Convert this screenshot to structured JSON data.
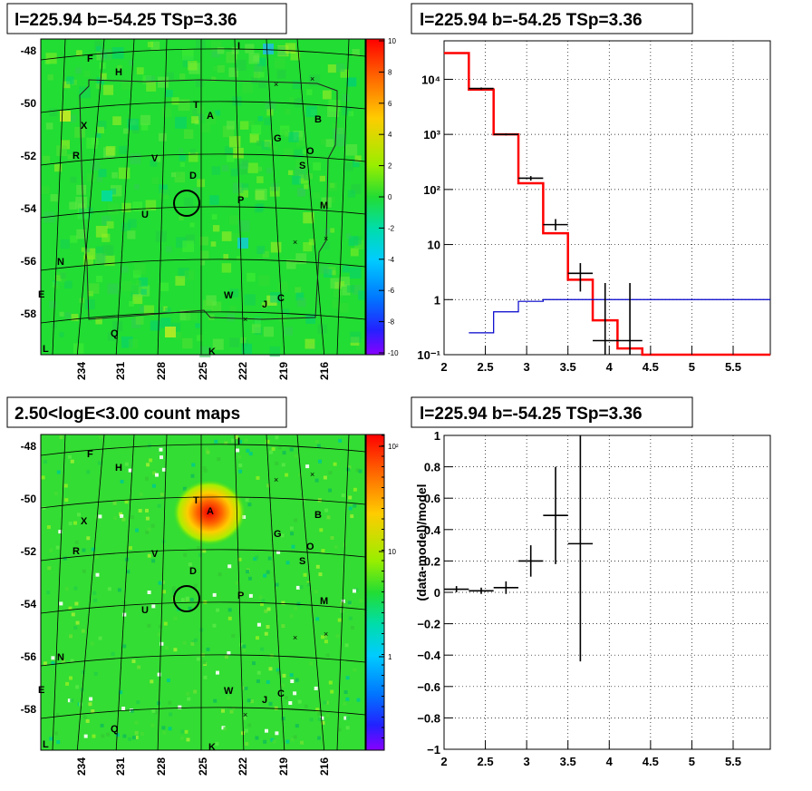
{
  "colors": {
    "sky_green": "#22dd33",
    "data_black": "#000000",
    "model_red": "#ff0000",
    "bkg_blue": "#0000cc"
  },
  "maps": [
    {
      "title": "l=225.94 b=-54.25 TSp=3.36",
      "colorbar_type": "linear",
      "colorbar_ticks": [
        "10",
        "8",
        "6",
        "4",
        "2",
        "0",
        "-2",
        "-4",
        "-6",
        "-8",
        "-10"
      ],
      "lat_labels": [
        "-48",
        "-50",
        "-52",
        "-54",
        "-56",
        "-58"
      ],
      "lon_labels": [
        "234",
        "231",
        "228",
        "225",
        "222",
        "219",
        "216"
      ],
      "source_labels": [
        "F",
        "H",
        "I",
        "X",
        "T",
        "A",
        "B",
        "G",
        "O",
        "R",
        "V",
        "S",
        "D",
        "P",
        "M",
        "U",
        "N",
        "E",
        "W",
        "J",
        "C",
        "Q",
        "L",
        "K"
      ]
    },
    {
      "title": "2.50<logE<3.00 count maps",
      "colorbar_type": "log",
      "colorbar_ticks": [
        "10²",
        "10",
        "1"
      ],
      "lat_labels": [
        "-48",
        "-50",
        "-52",
        "-54",
        "-56",
        "-58"
      ],
      "lon_labels": [
        "234",
        "231",
        "228",
        "225",
        "222",
        "219",
        "216"
      ],
      "source_labels": [
        "F",
        "H",
        "I",
        "X",
        "T",
        "A",
        "B",
        "G",
        "O",
        "R",
        "V",
        "S",
        "D",
        "P",
        "M",
        "U",
        "N",
        "E",
        "W",
        "J",
        "C",
        "Q",
        "L",
        "K"
      ]
    }
  ],
  "chart_data": [
    {
      "type": "line",
      "title": "l=225.94 b=-54.25 TSp=3.36",
      "yscale": "log",
      "xlim": [
        2,
        5.95
      ],
      "ylim": [
        0.1,
        50000
      ],
      "x_ticks": [
        "2",
        "2.5",
        "3",
        "3.5",
        "4",
        "4.5",
        "5",
        "5.5"
      ],
      "y_ticks": [
        "10⁴",
        "10³",
        "10²",
        "10",
        "1",
        "10⁻¹"
      ],
      "series": [
        {
          "color": "#ff0000",
          "style": "step",
          "bins": [
            2.0,
            2.3,
            2.6,
            2.9,
            3.2,
            3.5,
            3.8,
            4.1,
            4.4,
            5.95
          ],
          "values": [
            30000,
            6500,
            1000,
            130,
            16,
            2.3,
            0.42,
            0.13,
            0.1
          ]
        },
        {
          "color": "#0000cc",
          "style": "step",
          "bins": [
            2.3,
            2.6,
            2.9,
            3.2,
            5.95
          ],
          "values": [
            0.25,
            0.6,
            0.93,
            1.0
          ]
        },
        {
          "color": "#000000",
          "style": "errorbar",
          "points": [
            {
              "x": 2.45,
              "y": 6800,
              "xerr": 0.15,
              "ylo": 6500,
              "yhi": 7100
            },
            {
              "x": 2.75,
              "y": 1000,
              "xerr": 0.15,
              "ylo": 960,
              "yhi": 1040
            },
            {
              "x": 3.05,
              "y": 160,
              "xerr": 0.15,
              "ylo": 145,
              "yhi": 175
            },
            {
              "x": 3.35,
              "y": 23,
              "xerr": 0.15,
              "ylo": 18,
              "yhi": 29
            },
            {
              "x": 3.65,
              "y": 3.0,
              "xerr": 0.15,
              "ylo": 1.4,
              "yhi": 4.6
            },
            {
              "x": 3.95,
              "y": 0.18,
              "xerr": 0.15,
              "ylo": 0.1,
              "yhi": 2.0
            },
            {
              "x": 4.25,
              "y": 0.18,
              "xerr": 0.15,
              "ylo": 0.1,
              "yhi": 2.0
            }
          ]
        }
      ]
    },
    {
      "type": "scatter",
      "title": "l=225.94 b=-54.25 TSp=3.36",
      "ylabel": "(data-model)/model",
      "xlim": [
        2,
        5.95
      ],
      "ylim": [
        -1,
        1
      ],
      "x_ticks": [
        "2",
        "2.5",
        "3",
        "3.5",
        "4",
        "4.5",
        "5",
        "5.5"
      ],
      "y_ticks": [
        "1",
        "0.8",
        "0.6",
        "0.4",
        "0.2",
        "0",
        "−0.2",
        "−0.4",
        "−0.6",
        "−0.8",
        "−1"
      ],
      "series": [
        {
          "color": "#000000",
          "style": "errorbar",
          "points": [
            {
              "x": 2.15,
              "y": 0.02,
              "xerr": 0.15,
              "ylo": 0.0,
              "yhi": 0.04
            },
            {
              "x": 2.45,
              "y": 0.01,
              "xerr": 0.15,
              "ylo": -0.01,
              "yhi": 0.03
            },
            {
              "x": 2.75,
              "y": 0.03,
              "xerr": 0.15,
              "ylo": -0.01,
              "yhi": 0.07
            },
            {
              "x": 3.05,
              "y": 0.2,
              "xerr": 0.15,
              "ylo": 0.1,
              "yhi": 0.3
            },
            {
              "x": 3.35,
              "y": 0.49,
              "xerr": 0.15,
              "ylo": 0.18,
              "yhi": 0.8
            },
            {
              "x": 3.65,
              "y": 0.31,
              "xerr": 0.15,
              "ylo": -0.44,
              "yhi": 1.06
            }
          ]
        }
      ]
    }
  ]
}
